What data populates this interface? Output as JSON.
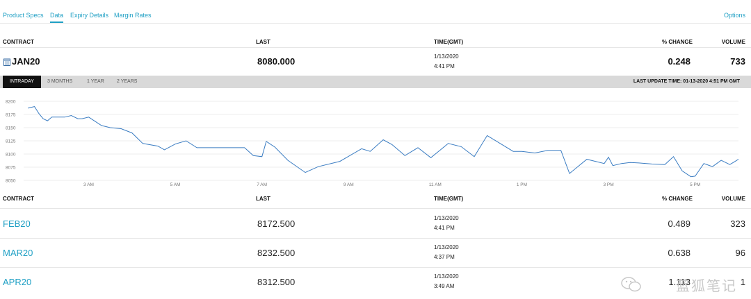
{
  "tabs": {
    "product_specs": "Product Specs",
    "data": "Data",
    "expiry_details": "Expiry Details",
    "margin_rates": "Margin Rates",
    "options": "Options"
  },
  "columns": {
    "contract": "CONTRACT",
    "last": "LAST",
    "time": "TIME(GMT)",
    "change": "% CHANGE",
    "volume": "VOLUME"
  },
  "featured": {
    "contract": "JAN20",
    "last": "8080.000",
    "date": "1/13/2020",
    "time": "4:41 PM",
    "change": "0.248",
    "volume": "733"
  },
  "ranges": {
    "intraday": "INTRADAY",
    "three_months": "3 MONTHS",
    "one_year": "1 YEAR",
    "two_years": "2 YEARS"
  },
  "last_update": "LAST UPDATE TIME: 01-13-2020 4:51 PM GMT",
  "chart_data": {
    "type": "line",
    "y_ticks": [
      "8200",
      "8175",
      "8150",
      "8125",
      "8100",
      "8075",
      "8050"
    ],
    "x_ticks": [
      "3 AM",
      "5 AM",
      "7 AM",
      "9 AM",
      "11 AM",
      "1 PM",
      "3 PM",
      "5 PM"
    ],
    "ylim": [
      8050,
      8200
    ],
    "xlim": [
      1.5,
      18.0
    ],
    "grid": true,
    "series": [
      {
        "color": "#3a7cc2",
        "x": [
          1.6,
          1.75,
          1.85,
          1.95,
          2.05,
          2.15,
          2.3,
          2.45,
          2.6,
          2.75,
          2.85,
          3.0,
          3.15,
          3.3,
          3.5,
          3.75,
          4.0,
          4.25,
          4.6,
          4.75,
          5.0,
          5.25,
          5.5,
          5.75,
          6.0,
          6.5,
          6.6,
          6.8,
          7.0,
          7.1,
          7.3,
          7.6,
          8.0,
          8.3,
          8.8,
          9.3,
          9.5,
          9.8,
          10.0,
          10.3,
          10.6,
          10.9,
          11.3,
          11.6,
          11.9,
          12.2,
          12.5,
          12.8,
          13.0,
          13.3,
          13.6,
          13.9,
          14.1,
          14.5,
          14.9,
          15.0,
          15.1,
          15.3,
          15.5,
          15.7,
          16.0,
          16.3,
          16.5,
          16.7,
          16.9,
          17.0,
          17.2,
          17.4,
          17.6,
          17.8,
          17.9,
          18.0
        ],
        "y": [
          8187,
          8190,
          8177,
          8167,
          8163,
          8170,
          8170,
          8170,
          8173,
          8167,
          8167,
          8170,
          8162,
          8154,
          8150,
          8148,
          8140,
          8120,
          8115,
          8108,
          8119,
          8125,
          8112,
          8112,
          8112,
          8112,
          8112,
          8097,
          8095,
          8124,
          8113,
          8088,
          8065,
          8076,
          8086,
          8110,
          8105,
          8127,
          8118,
          8097,
          8112,
          8093,
          8120,
          8114,
          8095,
          8135,
          8120,
          8105,
          8105,
          8102,
          8107,
          8107,
          8063,
          8090,
          8082,
          8094,
          8078,
          8082,
          8084,
          8083,
          8081,
          8080,
          8095,
          8068,
          8057,
          8058,
          8082,
          8076,
          8088,
          8080,
          8085,
          8090
        ]
      }
    ]
  },
  "rows": [
    {
      "contract": "FEB20",
      "last": "8172.500",
      "date": "1/13/2020",
      "time": "4:41 PM",
      "change": "0.489",
      "volume": "323"
    },
    {
      "contract": "MAR20",
      "last": "8232.500",
      "date": "1/13/2020",
      "time": "4:37 PM",
      "change": "0.638",
      "volume": "96"
    },
    {
      "contract": "APR20",
      "last": "8312.500",
      "date": "1/13/2020",
      "time": "3:49 AM",
      "change": "1.113",
      "volume": "1"
    }
  ],
  "watermark": "蓝狐笔记"
}
